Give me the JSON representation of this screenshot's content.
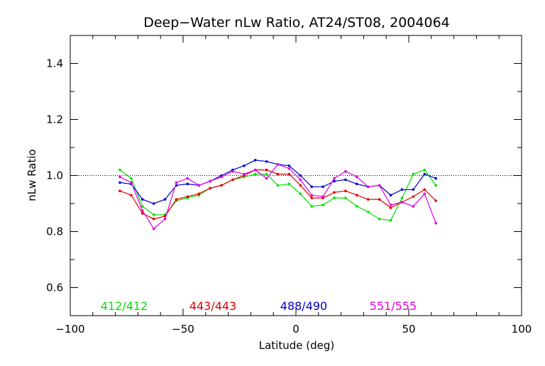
{
  "chart_data": {
    "type": "line",
    "title": "Deep−Water nLw Ratio, AT24/ST08, 2004064",
    "xlabel": "Latitude (deg)",
    "ylabel": "nLw Ratio",
    "xlim": [
      -100,
      100
    ],
    "ylim": [
      0.5,
      1.5
    ],
    "x_ticks": [
      -100,
      -50,
      0,
      50,
      100
    ],
    "x_tick_labels": [
      "−100",
      "−50",
      "0",
      "50",
      "100"
    ],
    "y_ticks": [
      0.6,
      0.8,
      1.0,
      1.2,
      1.4
    ],
    "y_tick_labels": [
      "0.6",
      "0.8",
      "1.0",
      "1.2",
      "1.4"
    ],
    "reference_line": {
      "y": 1.0,
      "style": "dotted"
    },
    "grid": false,
    "legend_position": "bottom",
    "series": [
      {
        "name": "412/412",
        "color": "#00e000",
        "x": [
          -78,
          -73,
          -68,
          -63,
          -58,
          -53,
          -48,
          -43,
          -38,
          -33,
          -28,
          -23,
          -18,
          -13,
          -8,
          -3,
          2,
          7,
          12,
          17,
          22,
          27,
          32,
          37,
          42,
          47,
          52,
          57,
          62
        ],
        "y": [
          1.02,
          0.99,
          0.89,
          0.86,
          0.86,
          0.91,
          0.92,
          0.93,
          0.955,
          0.965,
          0.985,
          0.995,
          1.005,
          1.005,
          0.965,
          0.97,
          0.935,
          0.89,
          0.895,
          0.92,
          0.92,
          0.89,
          0.87,
          0.845,
          0.84,
          0.92,
          1.005,
          1.02,
          0.965
        ]
      },
      {
        "name": "443/443",
        "color": "#e00000",
        "x": [
          -78,
          -73,
          -68,
          -63,
          -58,
          -53,
          -48,
          -43,
          -38,
          -33,
          -28,
          -23,
          -18,
          -13,
          -8,
          -3,
          2,
          7,
          12,
          17,
          22,
          27,
          32,
          37,
          42,
          47,
          52,
          57,
          62
        ],
        "y": [
          0.945,
          0.93,
          0.865,
          0.845,
          0.855,
          0.915,
          0.925,
          0.935,
          0.955,
          0.965,
          0.985,
          1.0,
          1.02,
          1.02,
          1.005,
          1.005,
          0.965,
          0.92,
          0.92,
          0.94,
          0.945,
          0.93,
          0.915,
          0.915,
          0.885,
          0.905,
          0.925,
          0.95,
          0.91
        ]
      },
      {
        "name": "488/490",
        "color": "#0000c8",
        "x": [
          -78,
          -73,
          -68,
          -63,
          -58,
          -53,
          -48,
          -43,
          -38,
          -33,
          -28,
          -23,
          -18,
          -13,
          -8,
          -3,
          2,
          7,
          12,
          17,
          22,
          27,
          32,
          37,
          42,
          47,
          52,
          57,
          62
        ],
        "y": [
          0.975,
          0.97,
          0.915,
          0.9,
          0.915,
          0.965,
          0.97,
          0.965,
          0.98,
          1.0,
          1.02,
          1.035,
          1.055,
          1.05,
          1.04,
          1.035,
          1.0,
          0.96,
          0.96,
          0.98,
          0.985,
          0.97,
          0.96,
          0.965,
          0.93,
          0.95,
          0.95,
          1.005,
          0.99
        ]
      },
      {
        "name": "551/555",
        "color": "#e000e0",
        "x": [
          -78,
          -73,
          -68,
          -63,
          -58,
          -53,
          -48,
          -43,
          -38,
          -33,
          -28,
          -23,
          -18,
          -13,
          -8,
          -3,
          2,
          7,
          12,
          17,
          22,
          27,
          32,
          37,
          42,
          47,
          52,
          57,
          62
        ],
        "y": [
          0.995,
          0.975,
          0.875,
          0.81,
          0.845,
          0.975,
          0.99,
          0.965,
          0.98,
          0.995,
          1.015,
          1.005,
          1.02,
          0.99,
          1.04,
          1.025,
          0.985,
          0.93,
          0.925,
          0.99,
          1.015,
          0.995,
          0.96,
          0.965,
          0.895,
          0.905,
          0.89,
          0.935,
          0.83
        ]
      }
    ]
  }
}
